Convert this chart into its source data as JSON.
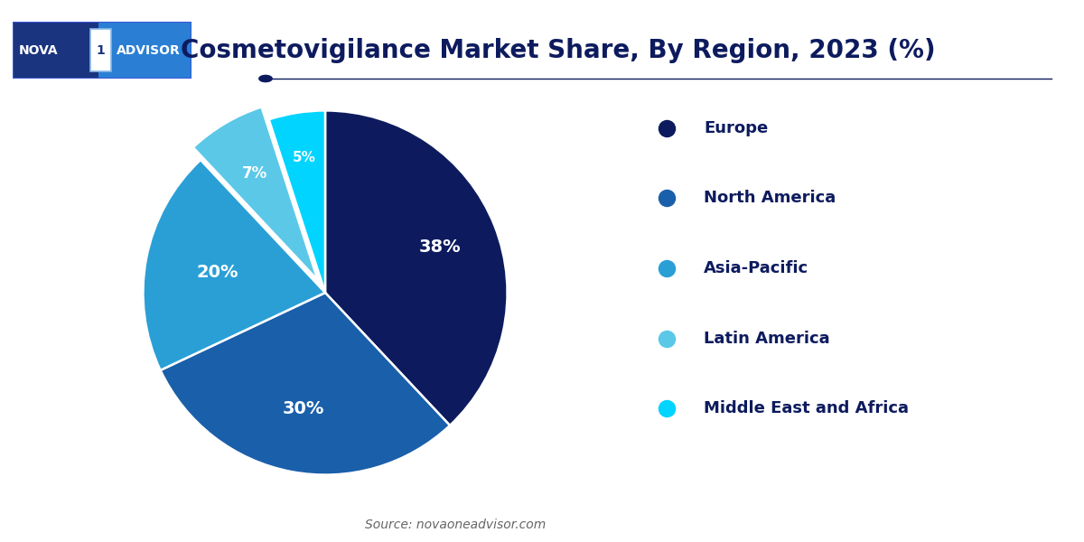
{
  "title": "Cosmetovigilance Market Share, By Region, 2023 (%)",
  "title_fontsize": 20,
  "title_color": "#0d1b5e",
  "background_color": "#ffffff",
  "labels": [
    "Europe",
    "North America",
    "Asia-Pacific",
    "Latin America",
    "Middle East and Africa"
  ],
  "values": [
    38,
    30,
    20,
    7,
    5
  ],
  "colors": [
    "#0d1b5e",
    "#1a5faa",
    "#2a9fd6",
    "#5bc8e8",
    "#00d4ff"
  ],
  "pct_labels": [
    "38%",
    "30%",
    "20%",
    "7%",
    "5%"
  ],
  "explode": [
    0,
    0,
    0,
    0.08,
    0
  ],
  "startangle": 90,
  "source_text": "Source: novaoneadvisor.com",
  "source_color": "#666666",
  "legend_text_color": "#0d1b5e",
  "separator_color": "#0d1b5e",
  "logo_bg_left": "#1a3a8c",
  "logo_bg_right": "#2a7fd4",
  "logo_text_color": "#ffffff",
  "logo_box_color": "#4dc8e8",
  "pct_label_radii": [
    0.68,
    0.65,
    0.6,
    0.72,
    0.75
  ]
}
